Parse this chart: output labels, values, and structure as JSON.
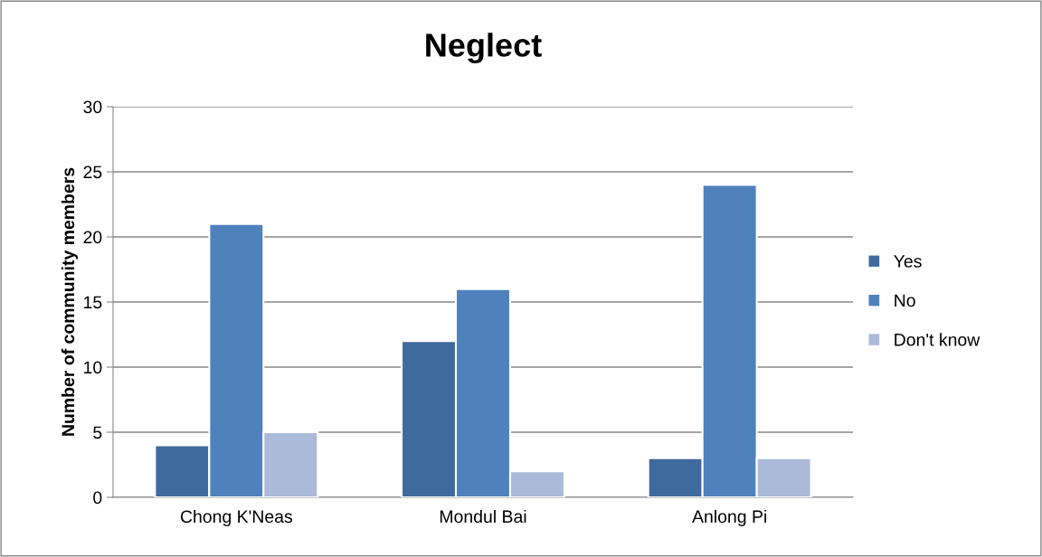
{
  "chart_data": {
    "type": "bar",
    "title": "Neglect",
    "ylabel": "Number of community members",
    "categories": [
      "Chong K'Neas",
      "Mondul Bai",
      "Anlong Pi"
    ],
    "series": [
      {
        "name": "Yes",
        "color": "#3f6a9e",
        "values": [
          4,
          12,
          3
        ]
      },
      {
        "name": "No",
        "color": "#4f81bd",
        "values": [
          21,
          16,
          24
        ]
      },
      {
        "name": "Don't know",
        "color": "#aabad8",
        "values": [
          5,
          2,
          3
        ]
      }
    ],
    "ylim": [
      0,
      30
    ],
    "yticks": [
      0,
      5,
      10,
      15,
      20,
      25,
      30
    ],
    "grid": "y",
    "legend": "right"
  }
}
